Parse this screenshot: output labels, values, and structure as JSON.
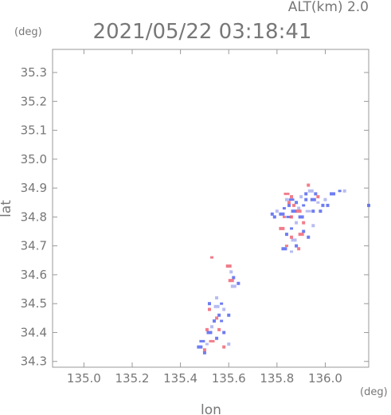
{
  "header": {
    "altitude_label": "ALT(km)  2.0",
    "timestamp": "2021/05/22 03:18:41"
  },
  "chart_data": {
    "type": "scatter",
    "xlabel": "lon",
    "ylabel": "lat",
    "x_unit": "(deg)",
    "y_unit": "(deg)",
    "xlim": [
      134.87,
      136.18
    ],
    "ylim": [
      34.28,
      35.38
    ],
    "x_ticks": [
      "135.0",
      "135.2",
      "135.4",
      "135.6",
      "135.8",
      "136.0"
    ],
    "y_ticks": [
      "34.3",
      "34.4",
      "34.5",
      "34.6",
      "34.7",
      "34.8",
      "34.9",
      "35.0",
      "35.1",
      "35.2",
      "35.3"
    ],
    "grid": false,
    "colors": {
      "positive": "#ee6677",
      "negative": "#5566ee",
      "light_negative": "#aab0ee"
    },
    "series": [
      {
        "sign": "negative",
        "points": [
          [
            135.86,
            34.86
          ],
          [
            135.88,
            34.85
          ],
          [
            135.9,
            34.87
          ],
          [
            135.92,
            34.88
          ],
          [
            135.95,
            34.86
          ],
          [
            135.97,
            34.85
          ],
          [
            135.99,
            34.84
          ],
          [
            136.01,
            34.84
          ],
          [
            135.94,
            34.89
          ],
          [
            135.96,
            34.88
          ],
          [
            135.91,
            34.84
          ],
          [
            135.89,
            34.83
          ],
          [
            135.87,
            34.82
          ],
          [
            135.85,
            34.84
          ],
          [
            135.84,
            34.86
          ],
          [
            135.83,
            34.83
          ],
          [
            135.82,
            34.81
          ],
          [
            135.8,
            34.82
          ],
          [
            135.79,
            34.8
          ],
          [
            135.78,
            34.81
          ],
          [
            135.93,
            34.82
          ],
          [
            135.95,
            34.82
          ],
          [
            135.98,
            34.82
          ],
          [
            136.0,
            34.86
          ],
          [
            136.03,
            34.88
          ],
          [
            136.06,
            34.89
          ],
          [
            136.08,
            34.89
          ],
          [
            136.18,
            34.84
          ],
          [
            135.9,
            34.8
          ],
          [
            135.88,
            34.78
          ],
          [
            135.86,
            34.76
          ],
          [
            135.91,
            34.75
          ],
          [
            135.87,
            34.72
          ],
          [
            135.84,
            34.74
          ],
          [
            135.88,
            34.7
          ],
          [
            135.86,
            34.68
          ],
          [
            135.83,
            34.69
          ],
          [
            135.93,
            34.73
          ],
          [
            135.95,
            34.77
          ],
          [
            135.92,
            34.86
          ],
          [
            135.85,
            34.8
          ],
          [
            135.58,
            34.48
          ],
          [
            135.56,
            34.46
          ],
          [
            135.6,
            34.46
          ],
          [
            135.55,
            34.49
          ],
          [
            135.57,
            34.5
          ],
          [
            135.54,
            34.44
          ],
          [
            135.53,
            34.42
          ],
          [
            135.52,
            34.4
          ],
          [
            135.55,
            34.38
          ],
          [
            135.51,
            34.36
          ],
          [
            135.5,
            34.33
          ],
          [
            135.48,
            34.35
          ],
          [
            135.6,
            34.36
          ],
          [
            135.58,
            34.4
          ],
          [
            135.57,
            34.44
          ],
          [
            135.62,
            34.56
          ],
          [
            135.64,
            34.57
          ],
          [
            135.62,
            34.59
          ],
          [
            135.61,
            34.61
          ],
          [
            135.49,
            34.37
          ],
          [
            135.52,
            34.5
          ],
          [
            135.55,
            34.52
          ]
        ]
      },
      {
        "sign": "positive",
        "points": [
          [
            135.84,
            34.88
          ],
          [
            135.86,
            34.87
          ],
          [
            135.87,
            34.84
          ],
          [
            135.85,
            34.85
          ],
          [
            135.89,
            34.82
          ],
          [
            135.83,
            34.8
          ],
          [
            135.86,
            34.8
          ],
          [
            135.91,
            34.78
          ],
          [
            135.9,
            34.74
          ],
          [
            135.86,
            34.73
          ],
          [
            135.84,
            34.7
          ],
          [
            135.89,
            34.69
          ],
          [
            135.82,
            34.76
          ],
          [
            135.97,
            34.87
          ],
          [
            135.93,
            34.91
          ],
          [
            135.53,
            34.66
          ],
          [
            135.61,
            34.58
          ],
          [
            135.55,
            34.45
          ],
          [
            135.52,
            34.48
          ],
          [
            135.56,
            34.41
          ],
          [
            135.53,
            34.37
          ],
          [
            135.5,
            34.34
          ],
          [
            135.58,
            34.35
          ],
          [
            135.51,
            34.41
          ],
          [
            135.6,
            34.63
          ]
        ]
      }
    ]
  }
}
